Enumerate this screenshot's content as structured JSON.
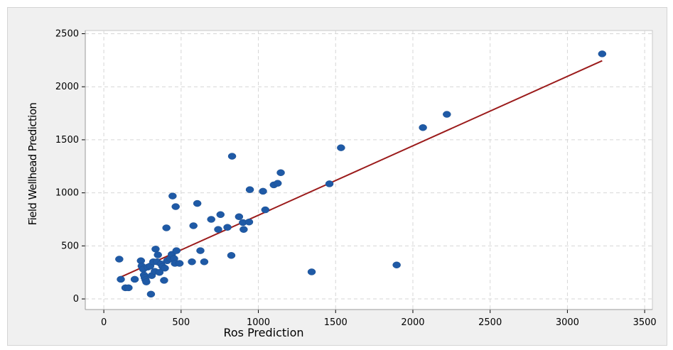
{
  "chart_data": {
    "type": "scatter",
    "title": "",
    "xlabel": "Ros Prediction",
    "ylabel": "Field Wellhead Prediction",
    "xlim": [
      -120,
      3550
    ],
    "ylim": [
      -100,
      2530
    ],
    "xticks": [
      0,
      500,
      1000,
      1500,
      2000,
      2500,
      3000,
      3500
    ],
    "yticks": [
      0,
      500,
      1000,
      1500,
      2000,
      2500
    ],
    "grid": true,
    "colors": {
      "background": "#f0f0f0",
      "plot_area": "#ffffff",
      "points": "#1f5aa6",
      "fit_line": "#9b1b1b",
      "grid": "#d6d6d6"
    },
    "series": [
      {
        "kind": "points",
        "points": [
          [
            100,
            375
          ],
          [
            110,
            185
          ],
          [
            140,
            105
          ],
          [
            160,
            105
          ],
          [
            200,
            185
          ],
          [
            240,
            360
          ],
          [
            245,
            310
          ],
          [
            255,
            280
          ],
          [
            260,
            225
          ],
          [
            265,
            200
          ],
          [
            270,
            180
          ],
          [
            275,
            160
          ],
          [
            285,
            300
          ],
          [
            300,
            310
          ],
          [
            305,
            45
          ],
          [
            310,
            220
          ],
          [
            320,
            350
          ],
          [
            330,
            260
          ],
          [
            335,
            470
          ],
          [
            345,
            350
          ],
          [
            350,
            415
          ],
          [
            360,
            250
          ],
          [
            370,
            330
          ],
          [
            380,
            305
          ],
          [
            390,
            175
          ],
          [
            395,
            290
          ],
          [
            405,
            670
          ],
          [
            410,
            360
          ],
          [
            430,
            380
          ],
          [
            440,
            420
          ],
          [
            445,
            970
          ],
          [
            455,
            380
          ],
          [
            460,
            335
          ],
          [
            465,
            870
          ],
          [
            470,
            455
          ],
          [
            490,
            335
          ],
          [
            570,
            350
          ],
          [
            580,
            690
          ],
          [
            605,
            900
          ],
          [
            625,
            455
          ],
          [
            650,
            350
          ],
          [
            695,
            750
          ],
          [
            740,
            655
          ],
          [
            755,
            795
          ],
          [
            800,
            675
          ],
          [
            825,
            410
          ],
          [
            830,
            1345
          ],
          [
            875,
            775
          ],
          [
            900,
            720
          ],
          [
            905,
            655
          ],
          [
            940,
            725
          ],
          [
            945,
            1030
          ],
          [
            1030,
            1015
          ],
          [
            1045,
            840
          ],
          [
            1100,
            1075
          ],
          [
            1125,
            1090
          ],
          [
            1145,
            1190
          ],
          [
            1345,
            255
          ],
          [
            1460,
            1085
          ],
          [
            1535,
            1425
          ],
          [
            1895,
            320
          ],
          [
            2065,
            1615
          ],
          [
            2220,
            1740
          ],
          [
            3225,
            2310
          ]
        ]
      },
      {
        "kind": "fit_line",
        "points": [
          [
            100,
            200
          ],
          [
            3225,
            2245
          ]
        ]
      }
    ]
  }
}
